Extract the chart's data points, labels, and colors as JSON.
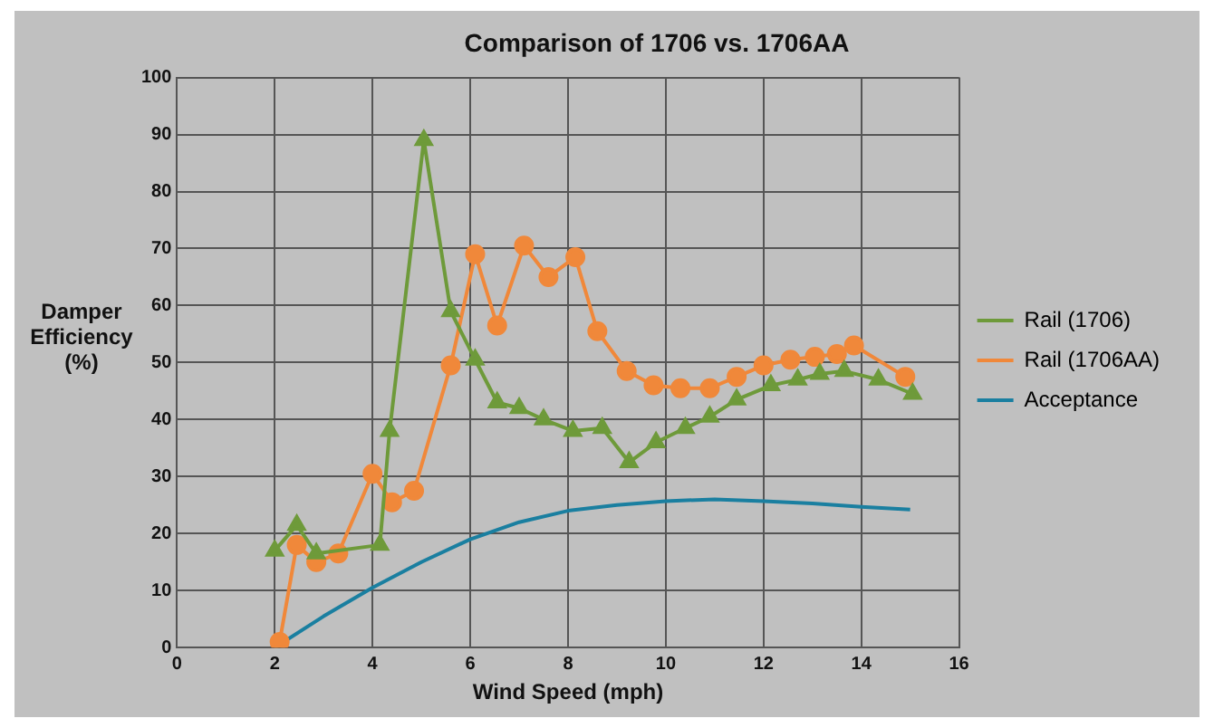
{
  "chart_data": {
    "type": "line",
    "title": "Comparison of 1706 vs. 1706AA",
    "xlabel": "Wind Speed (mph)",
    "ylabel": "Damper Efficiency (%)",
    "xlim": [
      0,
      16
    ],
    "xticks": [
      0,
      2,
      4,
      6,
      8,
      10,
      12,
      14,
      16
    ],
    "ylim": [
      0,
      100
    ],
    "yticks": [
      0,
      10,
      20,
      30,
      40,
      50,
      60,
      70,
      80,
      90,
      100
    ],
    "grid": true,
    "legend": "right",
    "line_style": "solid",
    "series": [
      {
        "name": "Rail (1706)",
        "color": "#6e9a3a",
        "marker": "triangle",
        "x": [
          2.0,
          2.45,
          2.85,
          4.15,
          4.35,
          5.05,
          5.6,
          6.1,
          6.55,
          7.0,
          7.5,
          8.1,
          8.7,
          9.25,
          9.8,
          10.4,
          10.9,
          11.45,
          12.15,
          12.7,
          13.15,
          13.65,
          14.35,
          15.05
        ],
        "values": [
          17,
          21.5,
          16.5,
          18,
          38,
          89,
          59,
          50.5,
          43,
          42,
          40,
          38,
          38.5,
          32.5,
          36,
          38.5,
          40.5,
          43.5,
          46,
          47,
          48,
          48.5,
          47,
          44.5
        ]
      },
      {
        "name": "Rail (1706AA)",
        "color": "#f0883a",
        "marker": "circle",
        "x": [
          2.1,
          2.45,
          2.85,
          3.3,
          4.0,
          4.4,
          4.85,
          5.6,
          6.1,
          6.55,
          7.1,
          7.6,
          8.15,
          8.6,
          9.2,
          9.75,
          10.3,
          10.9,
          11.45,
          12.0,
          12.55,
          13.05,
          13.5,
          13.85,
          14.9
        ],
        "values": [
          1,
          18,
          15,
          16.5,
          30.5,
          25.5,
          27.5,
          49.5,
          69,
          56.5,
          70.5,
          65,
          68.5,
          55.5,
          48.5,
          46,
          45.5,
          45.5,
          47.5,
          49.5,
          50.5,
          51,
          51.5,
          53,
          47.5
        ]
      },
      {
        "name": "Acceptance",
        "color": "#1a7fa0",
        "marker": "none",
        "x": [
          2,
          3,
          4,
          5,
          6,
          7,
          8,
          9,
          10,
          11,
          12,
          13,
          14,
          15
        ],
        "values": [
          0,
          5.5,
          10.5,
          15,
          19,
          22,
          24,
          25,
          25.7,
          26,
          25.7,
          25.3,
          24.7,
          24.2
        ]
      }
    ]
  }
}
